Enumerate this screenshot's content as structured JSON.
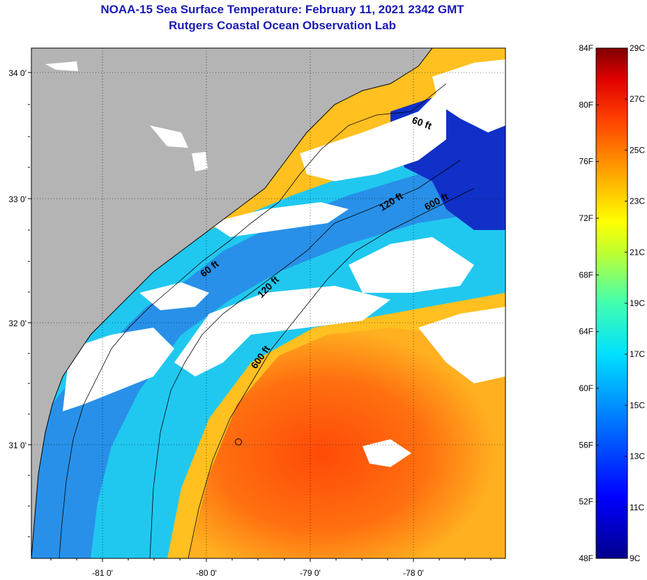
{
  "title": {
    "line1": "NOAA-15 Sea Surface Temperature:  February 11, 2021 2342 GMT",
    "line2": "Rutgers Coastal Ocean Observation Lab"
  },
  "axes": {
    "latitude_labels": [
      "34 0'",
      "33 0'",
      "32 0'",
      "31 0'"
    ],
    "longitude_labels": [
      "-81 0'",
      "-80 0'",
      "-79 0'",
      "-78 0'"
    ]
  },
  "contours": {
    "labels": [
      "60 ft",
      "120 ft",
      "600 ft",
      "60 ft",
      "120 ft",
      "600 ft"
    ]
  },
  "colorbar": {
    "fahrenheit_labels": [
      "84F",
      "80F",
      "76F",
      "72F",
      "68F",
      "64F",
      "60F",
      "56F",
      "52F",
      "48F"
    ],
    "celsius_labels": [
      "29C",
      "27C",
      "25C",
      "23C",
      "21C",
      "19C",
      "17C",
      "15C",
      "13C",
      "11C",
      "9C"
    ]
  },
  "colors": {
    "title": "#1a1ab4",
    "land": "#b4b4b4",
    "cloud": "#ffffff",
    "warm": "#ff5a0a",
    "cold": "#0a14b4"
  }
}
